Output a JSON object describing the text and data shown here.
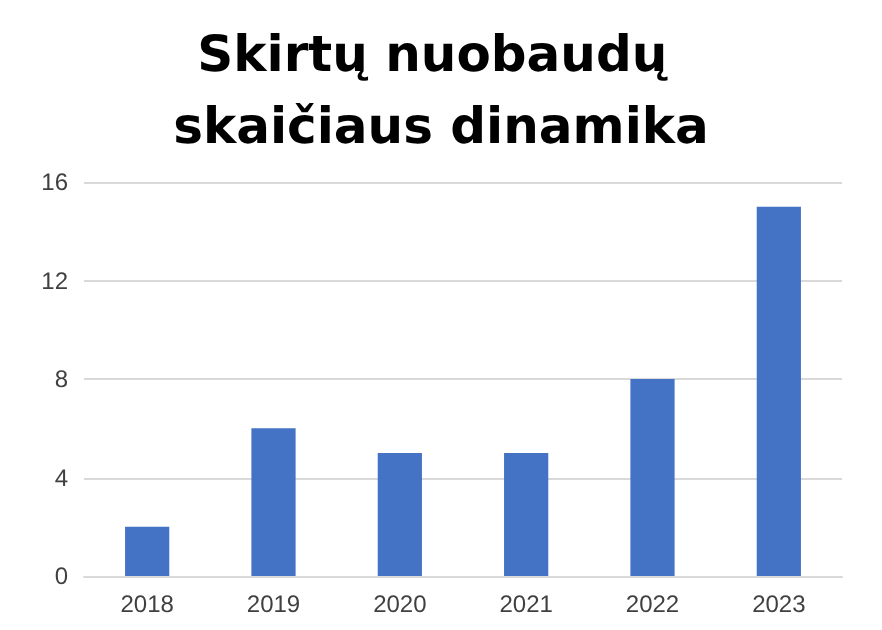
{
  "chart_data": {
    "type": "bar",
    "title": "Skirtų nuobaudų skaičiaus dinamika",
    "categories": [
      "2018",
      "2019",
      "2020",
      "2021",
      "2022",
      "2023"
    ],
    "values": [
      2,
      6,
      5,
      5,
      8,
      15
    ],
    "color": "#4472c4",
    "ylim": [
      0,
      16
    ],
    "yticks": [
      0,
      4,
      8,
      12,
      16
    ],
    "grid": "y"
  }
}
